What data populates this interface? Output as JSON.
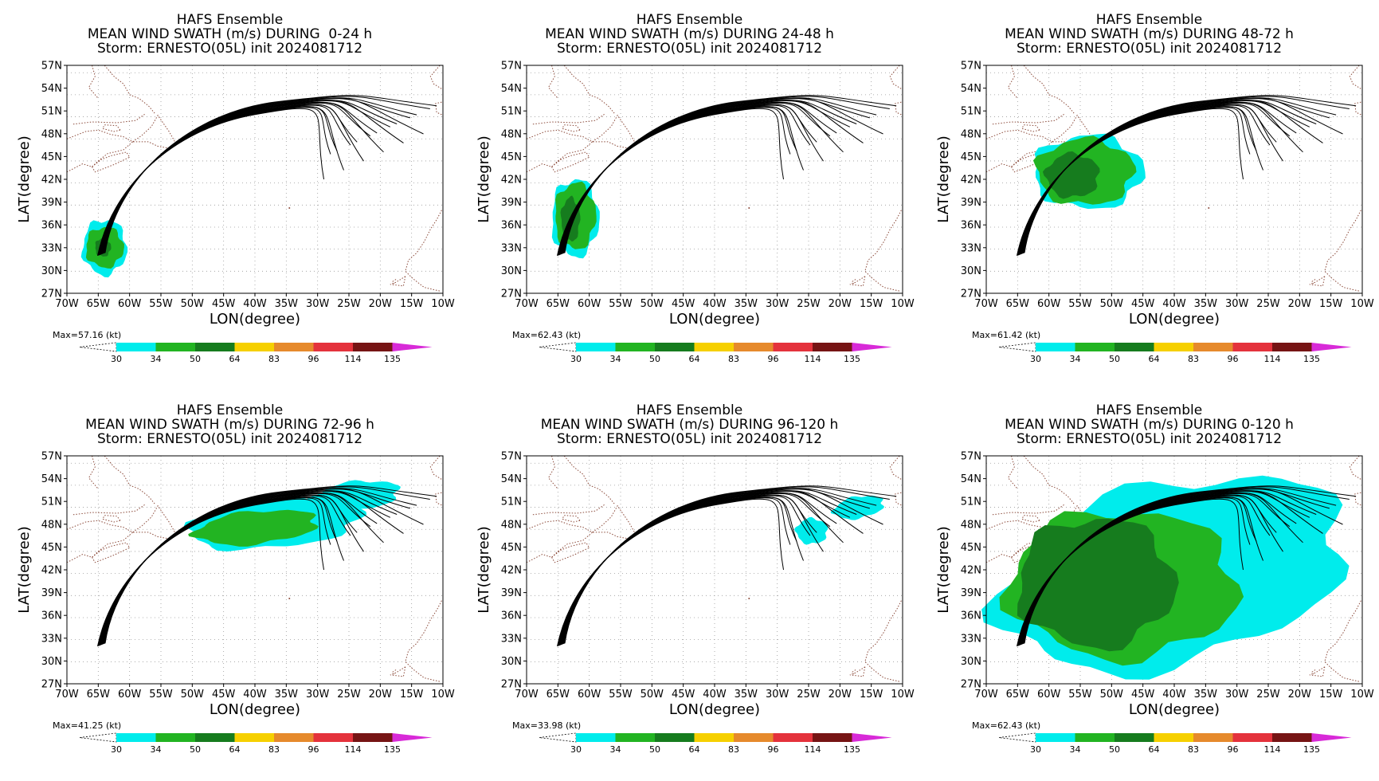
{
  "colors": {
    "cb_30": "#00ecec",
    "cb_34": "#22b422",
    "cb_50": "#167c1e",
    "cb_64": "#f6d000",
    "cb_83": "#e68a2c",
    "cb_96": "#e4323c",
    "cb_114": "#761414",
    "cb_135": "#d82ad8",
    "coast": "#8b4a3a",
    "track": "#000000",
    "grid": "#9a9a9a"
  },
  "colorbar_levels": [
    "30",
    "34",
    "50",
    "64",
    "83",
    "96",
    "114",
    "135"
  ],
  "x_ticks": [
    "70W",
    "65W",
    "60W",
    "55W",
    "50W",
    "45W",
    "40W",
    "35W",
    "30W",
    "25W",
    "20W",
    "15W",
    "10W"
  ],
  "y_ticks": [
    "57N",
    "54N",
    "51N",
    "48N",
    "45N",
    "42N",
    "39N",
    "36N",
    "33N",
    "30N",
    "27N"
  ],
  "xlabel": "LON(degree)",
  "ylabel": "LAT(degree)",
  "panels": [
    {
      "title1": "HAFS Ensemble",
      "title2": "MEAN WIND SWATH (m/s) DURING  0-24 h",
      "title3": "Storm: ERNESTO(05L) init 2024081712",
      "max_label": "Max=57.16 (kt)"
    },
    {
      "title1": "HAFS Ensemble",
      "title2": "MEAN WIND SWATH (m/s) DURING 24-48 h",
      "title3": "Storm: ERNESTO(05L) init 2024081712",
      "max_label": "Max=62.43 (kt)"
    },
    {
      "title1": "HAFS Ensemble",
      "title2": "MEAN WIND SWATH (m/s) DURING 48-72 h",
      "title3": "Storm: ERNESTO(05L) init 2024081712",
      "max_label": "Max=61.42 (kt)"
    },
    {
      "title1": "HAFS Ensemble",
      "title2": "MEAN WIND SWATH (m/s) DURING 72-96 h",
      "title3": "Storm: ERNESTO(05L) init 2024081712",
      "max_label": "Max=41.25 (kt)"
    },
    {
      "title1": "HAFS Ensemble",
      "title2": "MEAN WIND SWATH (m/s) DURING 96-120 h",
      "title3": "Storm: ERNESTO(05L) init 2024081712",
      "max_label": "Max=33.98 (kt)"
    },
    {
      "title1": "HAFS Ensemble",
      "title2": "MEAN WIND SWATH (m/s) DURING 0-120 h",
      "title3": "Storm: ERNESTO(05L) init 2024081712",
      "max_label": "Max=62.43 (kt)"
    }
  ],
  "chart_data": [
    {
      "type": "heatmap",
      "title": "HAFS Ensemble MEAN WIND SWATH (m/s) DURING  0-24 h Storm: ERNESTO(05L) init 2024081712",
      "xlabel": "LON(degree)",
      "ylabel": "LAT(degree)",
      "xlim": [
        -70,
        -10
      ],
      "ylim": [
        27,
        58
      ],
      "grid": true,
      "max_wind_kt": 57.16,
      "colorbar_levels_kt": [
        30,
        34,
        50,
        64,
        83,
        96,
        114,
        135
      ],
      "swath_regions": [
        {
          "level": 30,
          "lon": [
            -67.5,
            -60.5
          ],
          "lat": [
            29.5,
            37.0
          ]
        },
        {
          "level": 34,
          "lon": [
            -67.0,
            -61.0
          ],
          "lat": [
            30.5,
            36.0
          ]
        },
        {
          "level": 50,
          "lon": [
            -65.5,
            -63.0
          ],
          "lat": [
            32.0,
            34.5
          ]
        }
      ]
    },
    {
      "type": "heatmap",
      "title": "HAFS Ensemble MEAN WIND SWATH (m/s) DURING 24-48 h Storm: ERNESTO(05L) init 2024081712",
      "xlabel": "LON(degree)",
      "ylabel": "LAT(degree)",
      "xlim": [
        -70,
        -10
      ],
      "ylim": [
        27,
        58
      ],
      "grid": true,
      "max_wind_kt": 62.43,
      "colorbar_levels_kt": [
        30,
        34,
        50,
        64,
        83,
        96,
        114,
        135
      ],
      "swath_regions": [
        {
          "level": 30,
          "lon": [
            -66.0,
            -58.5
          ],
          "lat": [
            32.0,
            42.5
          ]
        },
        {
          "level": 34,
          "lon": [
            -65.5,
            -59.0
          ],
          "lat": [
            33.0,
            42.0
          ]
        },
        {
          "level": 50,
          "lon": [
            -64.5,
            -61.5
          ],
          "lat": [
            34.0,
            40.0
          ]
        }
      ]
    },
    {
      "type": "heatmap",
      "title": "HAFS Ensemble MEAN WIND SWATH (m/s) DURING 48-72 h Storm: ERNESTO(05L) init 2024081712",
      "xlabel": "LON(degree)",
      "ylabel": "LAT(degree)",
      "xlim": [
        -70,
        -10
      ],
      "ylim": [
        27,
        58
      ],
      "grid": true,
      "max_wind_kt": 61.42,
      "colorbar_levels_kt": [
        30,
        34,
        50,
        64,
        83,
        96,
        114,
        135
      ],
      "swath_regions": [
        {
          "level": 30,
          "lon": [
            -62.5,
            -45.0
          ],
          "lat": [
            38.5,
            48.5
          ]
        },
        {
          "level": 34,
          "lon": [
            -62.0,
            -46.5
          ],
          "lat": [
            39.0,
            48.0
          ]
        },
        {
          "level": 50,
          "lon": [
            -60.5,
            -52.0
          ],
          "lat": [
            40.0,
            46.0
          ]
        }
      ]
    },
    {
      "type": "heatmap",
      "title": "HAFS Ensemble MEAN WIND SWATH (m/s) DURING 72-96 h Storm: ERNESTO(05L) init 2024081712",
      "xlabel": "LON(degree)",
      "ylabel": "LAT(degree)",
      "xlim": [
        -70,
        -10
      ],
      "ylim": [
        27,
        58
      ],
      "grid": true,
      "max_wind_kt": 41.25,
      "colorbar_levels_kt": [
        30,
        34,
        50,
        64,
        83,
        96,
        114,
        135
      ],
      "swath_regions": [
        {
          "level": 30,
          "lon": [
            -50.5,
            -23.0
          ],
          "lat": [
            45.5,
            52.0
          ]
        },
        {
          "level": 30,
          "lon": [
            -31.0,
            -17.0
          ],
          "lat": [
            50.5,
            54.5
          ]
        },
        {
          "level": 34,
          "lon": [
            -49.5,
            -30.0
          ],
          "lat": [
            46.0,
            50.5
          ]
        }
      ]
    },
    {
      "type": "heatmap",
      "title": "HAFS Ensemble MEAN WIND SWATH (m/s) DURING 96-120 h Storm: ERNESTO(05L) init 2024081712",
      "xlabel": "LON(degree)",
      "ylabel": "LAT(degree)",
      "xlim": [
        -70,
        -10
      ],
      "ylim": [
        27,
        58
      ],
      "grid": true,
      "max_wind_kt": 33.98,
      "colorbar_levels_kt": [
        30,
        34,
        50,
        64,
        83,
        96,
        114,
        135
      ],
      "swath_regions": [
        {
          "level": 30,
          "lon": [
            -27.0,
            -22.0
          ],
          "lat": [
            46.0,
            49.5
          ]
        },
        {
          "level": 30,
          "lon": [
            -21.0,
            -13.0
          ],
          "lat": [
            49.5,
            52.5
          ]
        }
      ]
    },
    {
      "type": "heatmap",
      "title": "HAFS Ensemble MEAN WIND SWATH (m/s) DURING 0-120 h Storm: ERNESTO(05L) init 2024081712",
      "xlabel": "LON(degree)",
      "ylabel": "LAT(degree)",
      "xlim": [
        -70,
        -10
      ],
      "ylim": [
        27,
        58
      ],
      "grid": true,
      "max_wind_kt": 62.43,
      "colorbar_levels_kt": [
        30,
        34,
        50,
        64,
        83,
        96,
        114,
        135
      ],
      "swath_regions": [
        {
          "level": 30,
          "lon": [
            -67.5,
            -12.5
          ],
          "lat": [
            29.5,
            54.5
          ]
        },
        {
          "level": 34,
          "lon": [
            -66.5,
            -30.0
          ],
          "lat": [
            30.5,
            50.5
          ]
        },
        {
          "level": 50,
          "lon": [
            -65.0,
            -40.0
          ],
          "lat": [
            32.0,
            49.5
          ]
        }
      ]
    }
  ]
}
